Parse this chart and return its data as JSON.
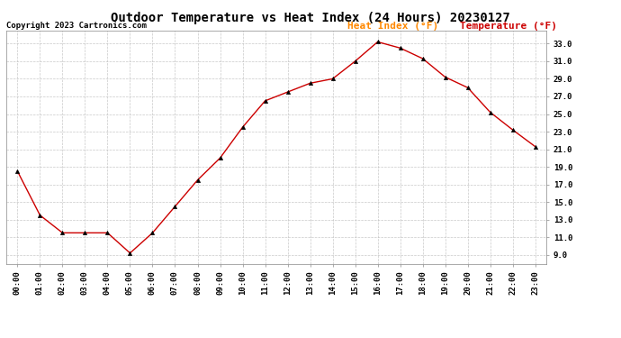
{
  "title": "Outdoor Temperature vs Heat Index (24 Hours) 20230127",
  "copyright": "Copyright 2023 Cartronics.com",
  "hours": [
    "00:00",
    "01:00",
    "02:00",
    "03:00",
    "04:00",
    "05:00",
    "06:00",
    "07:00",
    "08:00",
    "09:00",
    "10:00",
    "11:00",
    "12:00",
    "13:00",
    "14:00",
    "15:00",
    "16:00",
    "17:00",
    "18:00",
    "19:00",
    "20:00",
    "21:00",
    "22:00",
    "23:00"
  ],
  "temperature": [
    18.5,
    13.5,
    11.5,
    11.5,
    11.5,
    9.2,
    11.5,
    14.5,
    17.5,
    20.0,
    23.5,
    26.5,
    27.5,
    28.5,
    29.0,
    31.0,
    33.2,
    32.5,
    31.3,
    29.2,
    28.0,
    25.2,
    23.2,
    21.3
  ],
  "ylim_min": 8.0,
  "ylim_max": 34.5,
  "yticks": [
    9.0,
    11.0,
    13.0,
    15.0,
    17.0,
    19.0,
    21.0,
    23.0,
    25.0,
    27.0,
    29.0,
    31.0,
    33.0
  ],
  "line_color": "#cc0000",
  "marker_color": "#000000",
  "title_color": "#000000",
  "copyright_color": "#000000",
  "legend_heat_color": "#ff8800",
  "legend_temp_color": "#cc0000",
  "background_color": "#ffffff",
  "grid_color": "#bbbbbb",
  "title_fontsize": 10,
  "copyright_fontsize": 6.5,
  "legend_fontsize": 8,
  "axis_fontsize": 6.5
}
